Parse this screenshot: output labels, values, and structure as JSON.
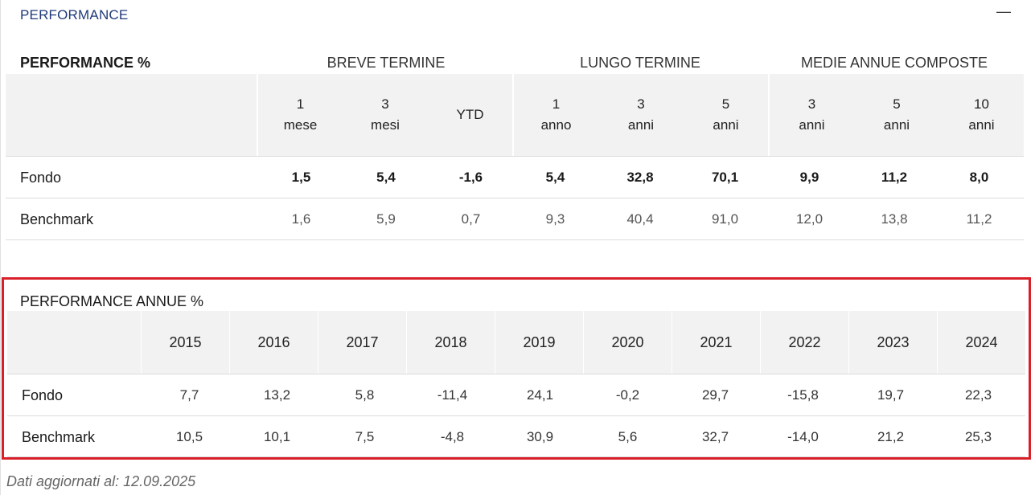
{
  "header": {
    "title": "PERFORMANCE",
    "collapse_icon": "—"
  },
  "table1": {
    "title": "PERFORMANCE %",
    "groups": [
      "BREVE TERMINE",
      "LUNGO TERMINE",
      "MEDIE ANNUE COMPOSTE"
    ],
    "columns": [
      {
        "top": "1",
        "bottom": "mese"
      },
      {
        "top": "3",
        "bottom": "mesi"
      },
      {
        "top": "YTD",
        "bottom": ""
      },
      {
        "top": "1",
        "bottom": "anno"
      },
      {
        "top": "3",
        "bottom": "anni"
      },
      {
        "top": "5",
        "bottom": "anni"
      },
      {
        "top": "3",
        "bottom": "anni"
      },
      {
        "top": "5",
        "bottom": "anni"
      },
      {
        "top": "10",
        "bottom": "anni"
      }
    ],
    "rows": [
      {
        "label": "Fondo",
        "values": [
          "1,5",
          "5,4",
          "-1,6",
          "5,4",
          "32,8",
          "70,1",
          "9,9",
          "11,2",
          "8,0"
        ]
      },
      {
        "label": "Benchmark",
        "values": [
          "1,6",
          "5,9",
          "0,7",
          "9,3",
          "40,4",
          "91,0",
          "12,0",
          "13,8",
          "11,2"
        ]
      }
    ]
  },
  "table2": {
    "title": "PERFORMANCE ANNUE %",
    "years": [
      "2015",
      "2016",
      "2017",
      "2018",
      "2019",
      "2020",
      "2021",
      "2022",
      "2023",
      "2024"
    ],
    "rows": [
      {
        "label": "Fondo",
        "values": [
          "7,7",
          "13,2",
          "5,8",
          "-11,4",
          "24,1",
          "-0,2",
          "29,7",
          "-15,8",
          "19,7",
          "22,3"
        ]
      },
      {
        "label": "Benchmark",
        "values": [
          "10,5",
          "10,1",
          "7,5",
          "-4,8",
          "30,9",
          "5,6",
          "32,7",
          "-14,0",
          "21,2",
          "25,3"
        ]
      }
    ]
  },
  "footer": {
    "updated": "Dati aggiornati al: 12.09.2025"
  }
}
